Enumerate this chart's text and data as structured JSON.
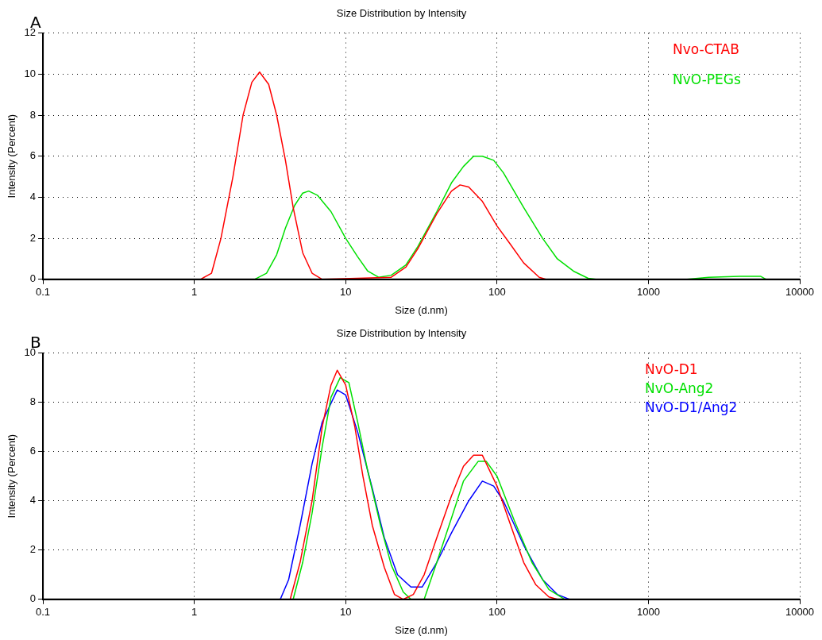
{
  "chart_data": [
    {
      "type": "line",
      "title": "Size Distribution by Intensity",
      "annotations": [
        "A"
      ],
      "xlabel": "Size (d.nm)",
      "ylabel": "Intensity (Percent)",
      "log": "x",
      "xlim": [
        0.1,
        10000
      ],
      "xticks": [
        0.1,
        1,
        10,
        100,
        1000,
        10000
      ],
      "ylim": [
        0,
        12
      ],
      "yticks": [
        0,
        2,
        4,
        6,
        8,
        10,
        12
      ],
      "grid": true,
      "legend": "top right",
      "marker": "none",
      "line_style": "solid",
      "series": [
        {
          "name": "Nvo-CTAB",
          "color": "#ff0000",
          "x": [
            1.1,
            1.3,
            1.5,
            1.8,
            2.1,
            2.4,
            2.7,
            3.1,
            3.5,
            4.0,
            4.5,
            5.2,
            6,
            7,
            20,
            25,
            30,
            40,
            50,
            57,
            65,
            80,
            100,
            120,
            150,
            190,
            210,
            6000
          ],
          "values": [
            0,
            0.3,
            2,
            5,
            8,
            9.6,
            10.1,
            9.5,
            8,
            5.8,
            3.5,
            1.3,
            0.3,
            0,
            0.1,
            0.6,
            1.5,
            3.2,
            4.3,
            4.6,
            4.5,
            3.8,
            2.6,
            1.8,
            0.8,
            0.1,
            0,
            0
          ]
        },
        {
          "name": "NvO-PEGs",
          "color": "#00e000",
          "x": [
            0.4,
            2.5,
            3,
            3.5,
            4,
            4.6,
            5.2,
            5.7,
            6.5,
            8,
            10,
            12,
            14,
            16.5,
            20,
            25,
            30,
            40,
            50,
            60,
            70,
            80,
            95,
            110,
            150,
            200,
            250,
            320,
            400,
            450,
            1800,
            2500,
            4000,
            5500,
            6000,
            10000
          ],
          "values": [
            0,
            0,
            0.3,
            1.2,
            2.5,
            3.6,
            4.2,
            4.3,
            4.1,
            3.3,
            2,
            1.1,
            0.4,
            0.1,
            0.2,
            0.7,
            1.6,
            3.3,
            4.7,
            5.5,
            6,
            6,
            5.8,
            5.2,
            3.5,
            2,
            1,
            0.4,
            0.05,
            0,
            0,
            0.1,
            0.15,
            0.15,
            0,
            0
          ]
        }
      ]
    },
    {
      "type": "line",
      "title": "Size Distribution by Intensity",
      "annotations": [
        "B"
      ],
      "xlabel": "Size (d.nm)",
      "ylabel": "Intensity (Percent)",
      "log": "x",
      "xlim": [
        0.1,
        10000
      ],
      "xticks": [
        0.1,
        1,
        10,
        100,
        1000,
        10000
      ],
      "ylim": [
        0,
        10
      ],
      "yticks": [
        0,
        2,
        4,
        6,
        8,
        10
      ],
      "grid": true,
      "legend": "top right",
      "marker": "none",
      "line_style": "solid",
      "series": [
        {
          "name": "NvO-D1",
          "color": "#ff0000",
          "x": [
            4.3,
            5,
            6,
            7,
            8,
            8.8,
            10,
            11.5,
            13,
            15,
            18,
            21,
            24,
            28,
            33,
            40,
            50,
            60,
            70,
            80,
            100,
            120,
            150,
            180,
            220,
            250,
            10000
          ],
          "values": [
            0,
            1.5,
            4,
            7,
            8.7,
            9.3,
            8.7,
            7,
            5,
            3,
            1.3,
            0.2,
            0,
            0.2,
            1,
            2.5,
            4.2,
            5.4,
            5.85,
            5.85,
            4.6,
            3.2,
            1.5,
            0.6,
            0.1,
            0,
            0
          ]
        },
        {
          "name": "NvO-Ang2",
          "color": "#00e000",
          "x": [
            4.5,
            5.2,
            6,
            7,
            8,
            9.2,
            10.5,
            12,
            14,
            17,
            20,
            24,
            27,
            33,
            40,
            50,
            60,
            75,
            85,
            100,
            130,
            170,
            220,
            280,
            10000
          ],
          "values": [
            0,
            1.5,
            3.5,
            6.2,
            8.2,
            9,
            8.8,
            7.2,
            5.2,
            3,
            1.4,
            0.3,
            0,
            0,
            1.5,
            3.3,
            4.8,
            5.6,
            5.6,
            5,
            3.2,
            1.5,
            0.4,
            0,
            0
          ]
        },
        {
          "name": "NvO-D1/Ang2",
          "color": "#0000ff",
          "x": [
            0.4,
            3.7,
            4.2,
            5,
            6,
            7,
            8.8,
            10,
            12,
            15,
            18,
            22,
            27,
            32,
            40,
            50,
            65,
            80,
            95,
            110,
            150,
            200,
            250,
            300,
            10000
          ],
          "values": [
            0,
            0,
            0.8,
            3,
            5.5,
            7.2,
            8.5,
            8.3,
            6.8,
            4.5,
            2.5,
            1,
            0.5,
            0.5,
            1.5,
            2.7,
            4,
            4.8,
            4.6,
            4,
            2.2,
            0.8,
            0.2,
            0,
            0
          ]
        }
      ]
    }
  ]
}
